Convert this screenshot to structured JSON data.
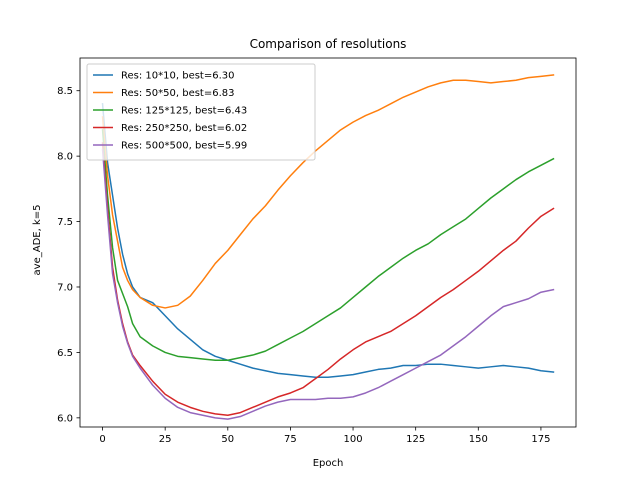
{
  "chart_data": {
    "type": "line",
    "title": "Comparison of resolutions",
    "xlabel": "Epoch",
    "ylabel": "ave_ADE, k=5",
    "xlim": [
      -9,
      189
    ],
    "ylim": [
      5.93,
      8.75
    ],
    "xticks": [
      "0",
      "25",
      "50",
      "75",
      "100",
      "125",
      "150",
      "175"
    ],
    "yticks": [
      "6.0",
      "6.5",
      "7.0",
      "7.5",
      "8.0",
      "8.5"
    ],
    "grid": false,
    "legend_position": "top-left",
    "series": [
      {
        "name": "Res: 10*10, best=6.30",
        "color": "#1f77b4",
        "points": [
          [
            0,
            8.4
          ],
          [
            2,
            7.95
          ],
          [
            4,
            7.7
          ],
          [
            6,
            7.45
          ],
          [
            8,
            7.25
          ],
          [
            10,
            7.1
          ],
          [
            12,
            7.0
          ],
          [
            15,
            6.92
          ],
          [
            20,
            6.88
          ],
          [
            25,
            6.78
          ],
          [
            30,
            6.68
          ],
          [
            35,
            6.6
          ],
          [
            40,
            6.52
          ],
          [
            45,
            6.47
          ],
          [
            50,
            6.44
          ],
          [
            55,
            6.41
          ],
          [
            60,
            6.38
          ],
          [
            65,
            6.36
          ],
          [
            70,
            6.34
          ],
          [
            75,
            6.33
          ],
          [
            80,
            6.32
          ],
          [
            85,
            6.31
          ],
          [
            90,
            6.31
          ],
          [
            95,
            6.32
          ],
          [
            100,
            6.33
          ],
          [
            105,
            6.35
          ],
          [
            110,
            6.37
          ],
          [
            115,
            6.38
          ],
          [
            120,
            6.4
          ],
          [
            125,
            6.4
          ],
          [
            130,
            6.41
          ],
          [
            135,
            6.41
          ],
          [
            140,
            6.4
          ],
          [
            145,
            6.39
          ],
          [
            150,
            6.38
          ],
          [
            155,
            6.39
          ],
          [
            160,
            6.4
          ],
          [
            165,
            6.39
          ],
          [
            170,
            6.38
          ],
          [
            175,
            6.36
          ],
          [
            180,
            6.35
          ]
        ]
      },
      {
        "name": "Res: 50*50, best=6.83",
        "color": "#ff7f0e",
        "points": [
          [
            0,
            8.3
          ],
          [
            2,
            7.85
          ],
          [
            4,
            7.55
          ],
          [
            6,
            7.35
          ],
          [
            8,
            7.15
          ],
          [
            10,
            7.05
          ],
          [
            12,
            6.98
          ],
          [
            15,
            6.92
          ],
          [
            20,
            6.86
          ],
          [
            25,
            6.84
          ],
          [
            30,
            6.86
          ],
          [
            35,
            6.93
          ],
          [
            40,
            7.05
          ],
          [
            45,
            7.18
          ],
          [
            50,
            7.28
          ],
          [
            55,
            7.4
          ],
          [
            60,
            7.52
          ],
          [
            65,
            7.62
          ],
          [
            70,
            7.74
          ],
          [
            75,
            7.85
          ],
          [
            80,
            7.95
          ],
          [
            85,
            8.04
          ],
          [
            90,
            8.12
          ],
          [
            95,
            8.2
          ],
          [
            100,
            8.26
          ],
          [
            105,
            8.31
          ],
          [
            110,
            8.35
          ],
          [
            115,
            8.4
          ],
          [
            120,
            8.45
          ],
          [
            125,
            8.49
          ],
          [
            130,
            8.53
          ],
          [
            135,
            8.56
          ],
          [
            140,
            8.58
          ],
          [
            145,
            8.58
          ],
          [
            150,
            8.57
          ],
          [
            155,
            8.56
          ],
          [
            160,
            8.57
          ],
          [
            165,
            8.58
          ],
          [
            170,
            8.6
          ],
          [
            175,
            8.61
          ],
          [
            180,
            8.62
          ]
        ]
      },
      {
        "name": "Res: 125*125, best=6.43",
        "color": "#2ca02c",
        "points": [
          [
            0,
            8.2
          ],
          [
            2,
            7.7
          ],
          [
            4,
            7.3
          ],
          [
            6,
            7.05
          ],
          [
            8,
            6.95
          ],
          [
            10,
            6.85
          ],
          [
            12,
            6.72
          ],
          [
            15,
            6.62
          ],
          [
            20,
            6.55
          ],
          [
            25,
            6.5
          ],
          [
            30,
            6.47
          ],
          [
            35,
            6.46
          ],
          [
            40,
            6.45
          ],
          [
            45,
            6.44
          ],
          [
            50,
            6.44
          ],
          [
            55,
            6.46
          ],
          [
            60,
            6.48
          ],
          [
            65,
            6.51
          ],
          [
            70,
            6.56
          ],
          [
            75,
            6.61
          ],
          [
            80,
            6.66
          ],
          [
            85,
            6.72
          ],
          [
            90,
            6.78
          ],
          [
            95,
            6.84
          ],
          [
            100,
            6.92
          ],
          [
            105,
            7.0
          ],
          [
            110,
            7.08
          ],
          [
            115,
            7.15
          ],
          [
            120,
            7.22
          ],
          [
            125,
            7.28
          ],
          [
            130,
            7.33
          ],
          [
            135,
            7.4
          ],
          [
            140,
            7.46
          ],
          [
            145,
            7.52
          ],
          [
            150,
            7.6
          ],
          [
            155,
            7.68
          ],
          [
            160,
            7.75
          ],
          [
            165,
            7.82
          ],
          [
            170,
            7.88
          ],
          [
            175,
            7.93
          ],
          [
            180,
            7.98
          ]
        ]
      },
      {
        "name": "Res: 250*250, best=6.02",
        "color": "#d62728",
        "points": [
          [
            0,
            8.1
          ],
          [
            2,
            7.6
          ],
          [
            4,
            7.15
          ],
          [
            6,
            6.9
          ],
          [
            8,
            6.72
          ],
          [
            10,
            6.58
          ],
          [
            12,
            6.48
          ],
          [
            15,
            6.4
          ],
          [
            20,
            6.28
          ],
          [
            25,
            6.18
          ],
          [
            30,
            6.12
          ],
          [
            35,
            6.08
          ],
          [
            40,
            6.05
          ],
          [
            45,
            6.03
          ],
          [
            50,
            6.02
          ],
          [
            55,
            6.04
          ],
          [
            60,
            6.08
          ],
          [
            65,
            6.12
          ],
          [
            70,
            6.16
          ],
          [
            75,
            6.19
          ],
          [
            80,
            6.23
          ],
          [
            85,
            6.3
          ],
          [
            90,
            6.37
          ],
          [
            95,
            6.45
          ],
          [
            100,
            6.52
          ],
          [
            105,
            6.58
          ],
          [
            110,
            6.62
          ],
          [
            115,
            6.66
          ],
          [
            120,
            6.72
          ],
          [
            125,
            6.78
          ],
          [
            130,
            6.85
          ],
          [
            135,
            6.92
          ],
          [
            140,
            6.98
          ],
          [
            145,
            7.05
          ],
          [
            150,
            7.12
          ],
          [
            155,
            7.2
          ],
          [
            160,
            7.28
          ],
          [
            165,
            7.35
          ],
          [
            170,
            7.45
          ],
          [
            175,
            7.54
          ],
          [
            180,
            7.6
          ]
        ]
      },
      {
        "name": "Res: 500*500, best=5.99",
        "color": "#9467bd",
        "points": [
          [
            0,
            8.05
          ],
          [
            2,
            7.55
          ],
          [
            4,
            7.1
          ],
          [
            6,
            6.88
          ],
          [
            8,
            6.7
          ],
          [
            10,
            6.57
          ],
          [
            12,
            6.47
          ],
          [
            15,
            6.38
          ],
          [
            20,
            6.25
          ],
          [
            25,
            6.15
          ],
          [
            30,
            6.08
          ],
          [
            35,
            6.04
          ],
          [
            40,
            6.02
          ],
          [
            45,
            6.0
          ],
          [
            50,
            5.99
          ],
          [
            55,
            6.01
          ],
          [
            60,
            6.05
          ],
          [
            65,
            6.09
          ],
          [
            70,
            6.12
          ],
          [
            75,
            6.14
          ],
          [
            80,
            6.14
          ],
          [
            85,
            6.14
          ],
          [
            90,
            6.15
          ],
          [
            95,
            6.15
          ],
          [
            100,
            6.16
          ],
          [
            105,
            6.19
          ],
          [
            110,
            6.23
          ],
          [
            115,
            6.28
          ],
          [
            120,
            6.33
          ],
          [
            125,
            6.38
          ],
          [
            130,
            6.43
          ],
          [
            135,
            6.48
          ],
          [
            140,
            6.55
          ],
          [
            145,
            6.62
          ],
          [
            150,
            6.7
          ],
          [
            155,
            6.78
          ],
          [
            160,
            6.85
          ],
          [
            165,
            6.88
          ],
          [
            170,
            6.91
          ],
          [
            175,
            6.96
          ],
          [
            180,
            6.98
          ]
        ]
      }
    ]
  }
}
